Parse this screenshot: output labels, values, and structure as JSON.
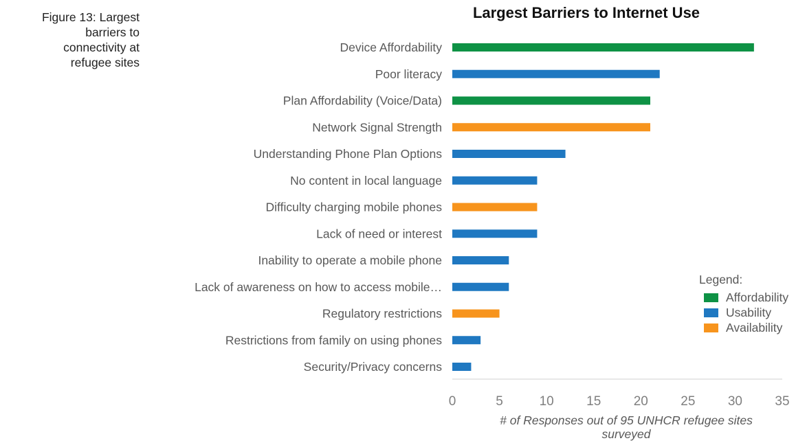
{
  "caption": "Figure 13: Largest\nbarriers to\nconnectivity at\nrefugee sites",
  "colors": {
    "Affordability": "#0e9245",
    "Usability": "#1f78c1",
    "Availability": "#f7941d"
  },
  "chart_data": {
    "type": "bar",
    "orientation": "horizontal",
    "title": "Largest Barriers to Internet Use",
    "xlabel": "# of Responses out of 95 UNHCR refugee sites surveyed",
    "ylabel": "",
    "xlim": [
      0,
      35
    ],
    "xticks": [
      0,
      5,
      10,
      15,
      20,
      25,
      30,
      35
    ],
    "grid": false,
    "legend_title": "Legend:",
    "legend_position": "right",
    "legend": [
      "Affordability",
      "Usability",
      "Availability"
    ],
    "categories": [
      "Device Affordability",
      "Poor literacy",
      "Plan Affordability (Voice/Data)",
      "Network Signal Strength",
      "Understanding Phone Plan Options",
      "No content in local language",
      "Difficulty charging mobile phones",
      "Lack of need or interest",
      "Inability to operate a mobile phone",
      "Lack of awareness on how to access mobile…",
      "Regulatory restrictions",
      "Restrictions from family on using phones",
      "Security/Privacy concerns"
    ],
    "values": [
      32,
      22,
      21,
      21,
      12,
      9,
      9,
      9,
      6,
      6,
      5,
      3,
      2
    ],
    "groups": [
      "Affordability",
      "Usability",
      "Affordability",
      "Availability",
      "Usability",
      "Usability",
      "Availability",
      "Usability",
      "Usability",
      "Usability",
      "Availability",
      "Usability",
      "Usability"
    ]
  }
}
